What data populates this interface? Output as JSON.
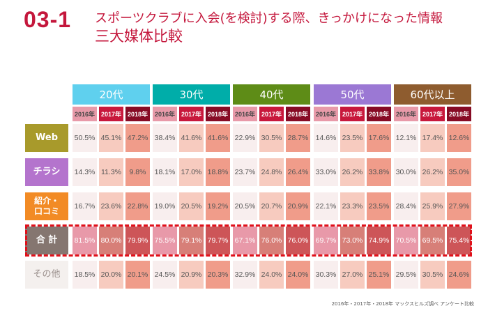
{
  "header": {
    "code": "03-1",
    "title_line1": "スポーツクラブに入会(を検討)する際、きっかけになった情報",
    "title_line2": "三大媒体比較"
  },
  "groups": [
    {
      "label": "20代",
      "color": "#5fd0ee"
    },
    {
      "label": "30代",
      "color": "#00ada9"
    },
    {
      "label": "40代",
      "color": "#5e8c17"
    },
    {
      "label": "50代",
      "color": "#9b78d4"
    },
    {
      "label": "60代以上",
      "color": "#8e5c2f"
    }
  ],
  "years": [
    {
      "label": "2016年",
      "color": "#e89aa9",
      "text": "#444"
    },
    {
      "label": "2017年",
      "color": "#c8183c",
      "text": "#fff"
    },
    {
      "label": "2018年",
      "color": "#870b25",
      "text": "#fff"
    }
  ],
  "rows": [
    {
      "label": "Web",
      "color": "#a89a2b",
      "text": "#fff",
      "values": [
        "50.5%",
        "45.1%",
        "47.2%",
        "38.4%",
        "41.6%",
        "41.6%",
        "22.9%",
        "30.5%",
        "28.7%",
        "14.6%",
        "23.5%",
        "17.6%",
        "12.1%",
        "17.4%",
        "12.6%"
      ]
    },
    {
      "label": "チラシ",
      "color": "#b474cd",
      "text": "#fff",
      "values": [
        "14.3%",
        "11.3%",
        "9.8%",
        "18.1%",
        "17.0%",
        "18.8%",
        "23.7%",
        "24.8%",
        "26.4%",
        "33.0%",
        "26.2%",
        "33.8%",
        "30.0%",
        "26.2%",
        "35.0%"
      ]
    },
    {
      "label": "紹介・\n口コミ",
      "color": "#f28b25",
      "text": "#fff",
      "values": [
        "16.7%",
        "23.6%",
        "22.8%",
        "19.0%",
        "20.5%",
        "19.2%",
        "20.5%",
        "20.7%",
        "20.9%",
        "22.1%",
        "23.3%",
        "23.5%",
        "28.4%",
        "25.9%",
        "27.9%"
      ]
    },
    {
      "label": "合 計",
      "color": "#857670",
      "text": "#fff",
      "total": true,
      "values": [
        "81.5%",
        "80.0%",
        "79.9%",
        "75.5%",
        "79.1%",
        "79.7%",
        "67.1%",
        "76.0%",
        "76.0%",
        "69.7%",
        "73.0%",
        "74.9%",
        "70.5%",
        "69.5%",
        "75.4%"
      ]
    },
    {
      "label": "その他",
      "color": "#f4f0ee",
      "text": "#9a8f8c",
      "values": [
        "18.5%",
        "20.0%",
        "20.1%",
        "24.5%",
        "20.9%",
        "20.3%",
        "32.9%",
        "24.0%",
        "24.0%",
        "30.3%",
        "27.0%",
        "25.1%",
        "29.5%",
        "30.5%",
        "24.6%"
      ]
    }
  ],
  "cell_colors": {
    "normal": [
      "#f8eeee",
      "#f7cbbf",
      "#f09c8a"
    ],
    "total": [
      "#e899a9",
      "#d77f78",
      "#cd5558"
    ]
  },
  "note": "2016年・2017年・2018年 マックスヒルズ調べ アンケート比較"
}
